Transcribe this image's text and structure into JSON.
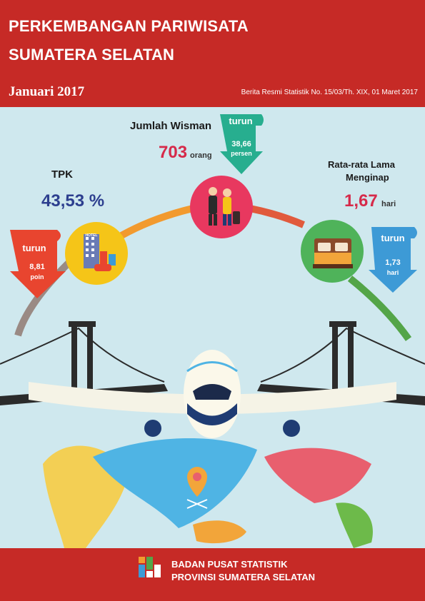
{
  "header": {
    "title_line1": "PERKEMBANGAN PARIWISATA",
    "title_line2": "SUMATERA SELATAN",
    "period": "Januari 2017",
    "reference": "Berita Resmi Statistik No. 15/03/Th. XIX, 01 Maret 2017"
  },
  "wisman": {
    "label": "Jumlah Wisman",
    "value": "703",
    "unit": "orang",
    "change": {
      "direction": "turun",
      "value": "38,66",
      "unit": "persen"
    }
  },
  "tpk": {
    "label": "TPK",
    "value": "43,53 %",
    "change": {
      "direction": "turun",
      "value": "8,81",
      "unit": "poin"
    }
  },
  "lama_menginap": {
    "label_line1": "Rata-rata Lama",
    "label_line2": "Menginap",
    "value": "1,67",
    "unit": "hari",
    "change": {
      "direction": "turun",
      "value": "1,73",
      "unit": "hari"
    }
  },
  "hotel_sign": "HOTEL",
  "footer": {
    "org_line1": "BADAN PUSAT STATISTIK",
    "org_line2": "PROVINSI SUMATERA SELATAN"
  },
  "icons": [
    "hotel-icon",
    "travelers-icon",
    "bed-icon",
    "airplane-icon",
    "bridge-icon",
    "world-map-icon",
    "location-pin-icon",
    "bps-logo-icon"
  ],
  "colors": {
    "brand_red": "#c62a26",
    "sky": "#cfe8ee",
    "wisman_arrow": "#27ae8f",
    "tpk_arrow": "#e8452f",
    "mlm_arrow": "#3d9ad6",
    "tpk_circle": "#f5c518",
    "wisman_circle": "#e8385f",
    "mlm_circle": "#4fb35a"
  }
}
